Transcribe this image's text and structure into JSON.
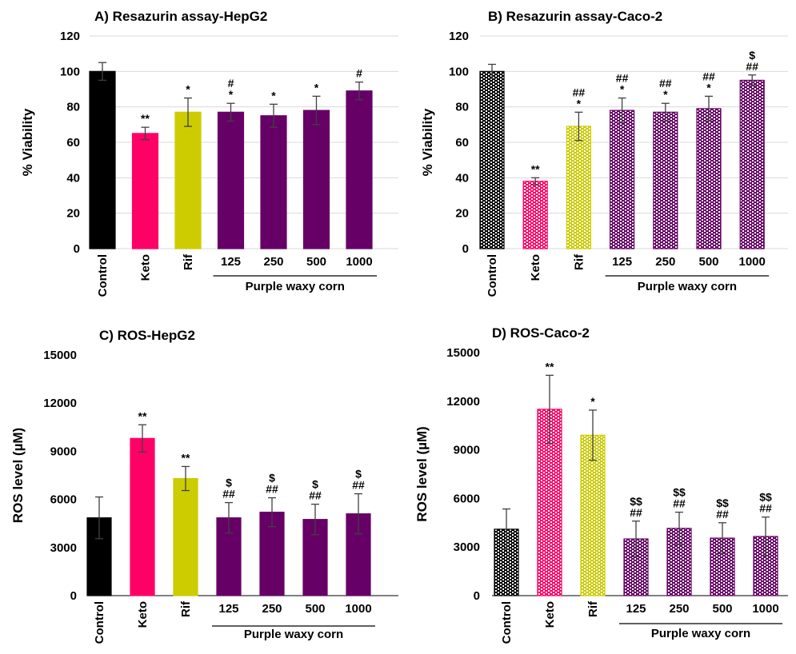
{
  "colors": {
    "control": "#000000",
    "keto": "#ff0066",
    "rif": "#cccc00",
    "corn": "#660066",
    "grid": "#d9d9d9"
  },
  "chart_data": [
    {
      "type": "bar",
      "title": "A) Resazurin assay-HepG2",
      "ylabel": "% Viability",
      "group_label": "Purple waxy corn",
      "ylim": [
        0,
        120
      ],
      "yticks": [
        0,
        20,
        40,
        60,
        80,
        100,
        120
      ],
      "grid": true,
      "patterned": false,
      "categories": [
        "Control",
        "Keto",
        "Rif",
        "125",
        "250",
        "500",
        "1000"
      ],
      "values": [
        100,
        65,
        77,
        77,
        75,
        78,
        89
      ],
      "errors": [
        5,
        3.5,
        8,
        5,
        6.5,
        8,
        5
      ],
      "annotations": [
        "",
        "**",
        "*",
        "#\n*",
        "*",
        "*",
        "#"
      ]
    },
    {
      "type": "bar",
      "title": "B) Resazurin assay-Caco-2",
      "ylabel": "% Viability",
      "group_label": "Purple waxy corn",
      "ylim": [
        0,
        120
      ],
      "yticks": [
        0,
        20,
        40,
        60,
        80,
        100,
        120
      ],
      "grid": true,
      "patterned": true,
      "categories": [
        "Control",
        "Keto",
        "Rif",
        "125",
        "250",
        "500",
        "1000"
      ],
      "values": [
        100,
        38,
        69,
        78,
        77,
        79,
        95
      ],
      "errors": [
        4,
        2,
        8,
        7,
        5,
        7,
        3
      ],
      "annotations": [
        "",
        "**",
        "##\n*",
        "##\n*",
        "##\n*",
        "##\n*",
        "$\n##"
      ]
    },
    {
      "type": "bar",
      "title": "C) ROS-HepG2",
      "ylabel": "ROS level (µM)",
      "group_label": "Purple waxy corn",
      "ylim": [
        0,
        15000
      ],
      "yticks": [
        0,
        3000,
        6000,
        9000,
        12000,
        15000
      ],
      "grid": false,
      "patterned": false,
      "categories": [
        "Control",
        "Keto",
        "Rif",
        "125",
        "250",
        "500",
        "1000"
      ],
      "values": [
        4850,
        9800,
        7300,
        4850,
        5200,
        4750,
        5100
      ],
      "errors": [
        1300,
        850,
        750,
        950,
        900,
        950,
        1250
      ],
      "annotations": [
        "",
        "**",
        "**",
        "$\n##",
        "$\n##",
        "$\n##",
        "$\n##"
      ]
    },
    {
      "type": "bar",
      "title": "D) ROS-Caco-2",
      "ylabel": "ROS level (µM)",
      "group_label": "Purple waxy corn",
      "ylim": [
        0,
        15000
      ],
      "yticks": [
        0,
        3000,
        6000,
        9000,
        12000,
        15000
      ],
      "grid": false,
      "patterned": true,
      "categories": [
        "Control",
        "Keto",
        "Rif",
        "125",
        "250",
        "500",
        "1000"
      ],
      "values": [
        4100,
        11500,
        9900,
        3500,
        4150,
        3550,
        3650
      ],
      "errors": [
        1250,
        2100,
        1550,
        1100,
        1000,
        950,
        1200
      ],
      "annotations": [
        "",
        "**",
        "*",
        "$$\n##",
        "$$\n##",
        "$$\n##",
        "$$\n##"
      ]
    }
  ]
}
